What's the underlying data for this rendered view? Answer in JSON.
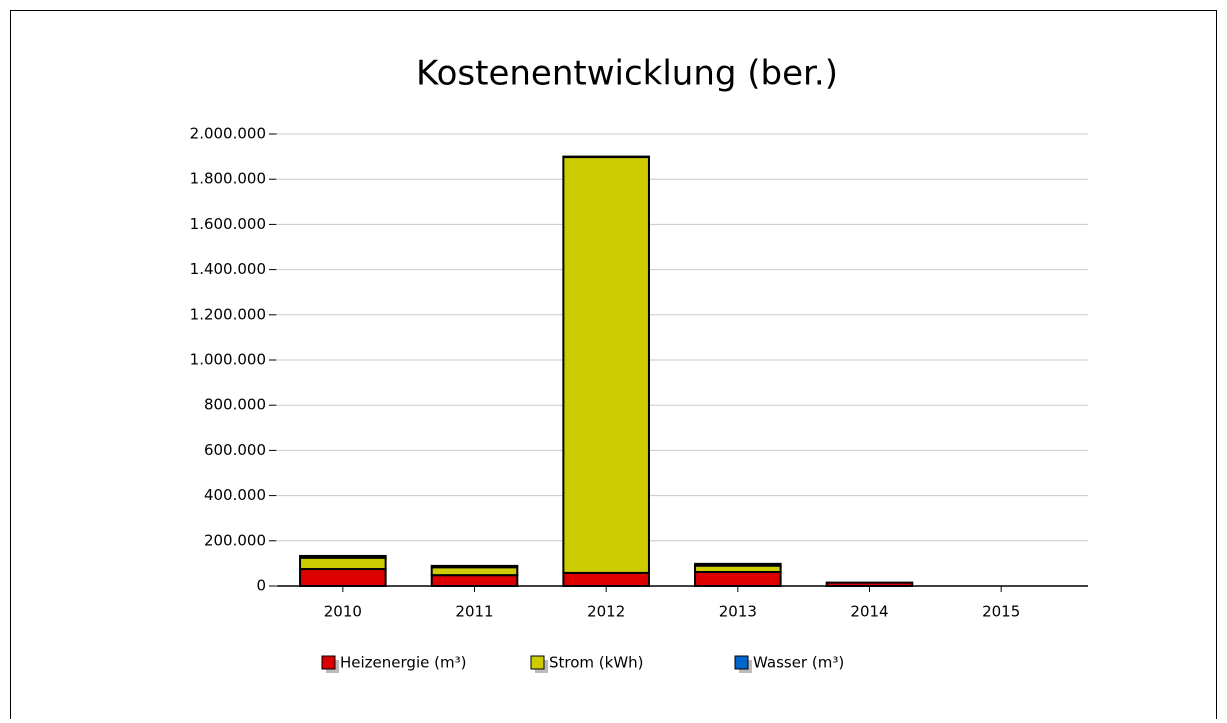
{
  "chart_data": {
    "type": "stacked_bar",
    "title": "Kostenentwicklung (ber.)",
    "categories": [
      "2010",
      "2011",
      "2012",
      "2013",
      "2014",
      "2015"
    ],
    "series": [
      {
        "name": "Heizenergie (m³)",
        "color": "#dd0000",
        "values": [
          75000,
          48000,
          58000,
          62000,
          15000,
          0
        ]
      },
      {
        "name": "Strom (kWh)",
        "color": "#cccc00",
        "values": [
          50000,
          35000,
          1840000,
          28000,
          0,
          0
        ]
      },
      {
        "name": "Wasser (m³)",
        "color": "#0066cc",
        "values": [
          8000,
          6000,
          2000,
          8000,
          0,
          0
        ]
      }
    ],
    "ylim": [
      0,
      2000000
    ],
    "yticks": [
      0,
      {
        "value": 200000,
        "label": "200.000"
      },
      {
        "value": 400000,
        "label": "400.000"
      },
      {
        "value": 600000,
        "label": "600.000"
      },
      {
        "value": 800000,
        "label": "800.000"
      },
      {
        "value": 1000000,
        "label": "1.000.000"
      },
      {
        "value": 1200000,
        "label": "1.200.000"
      },
      {
        "value": 1400000,
        "label": "1.400.000"
      },
      {
        "value": 1600000,
        "label": "1.600.000"
      },
      {
        "value": 1800000,
        "label": "1.800.000"
      },
      {
        "value": 2000000,
        "label": "2.000.000"
      }
    ],
    "grid": true,
    "legend": "bottom"
  }
}
